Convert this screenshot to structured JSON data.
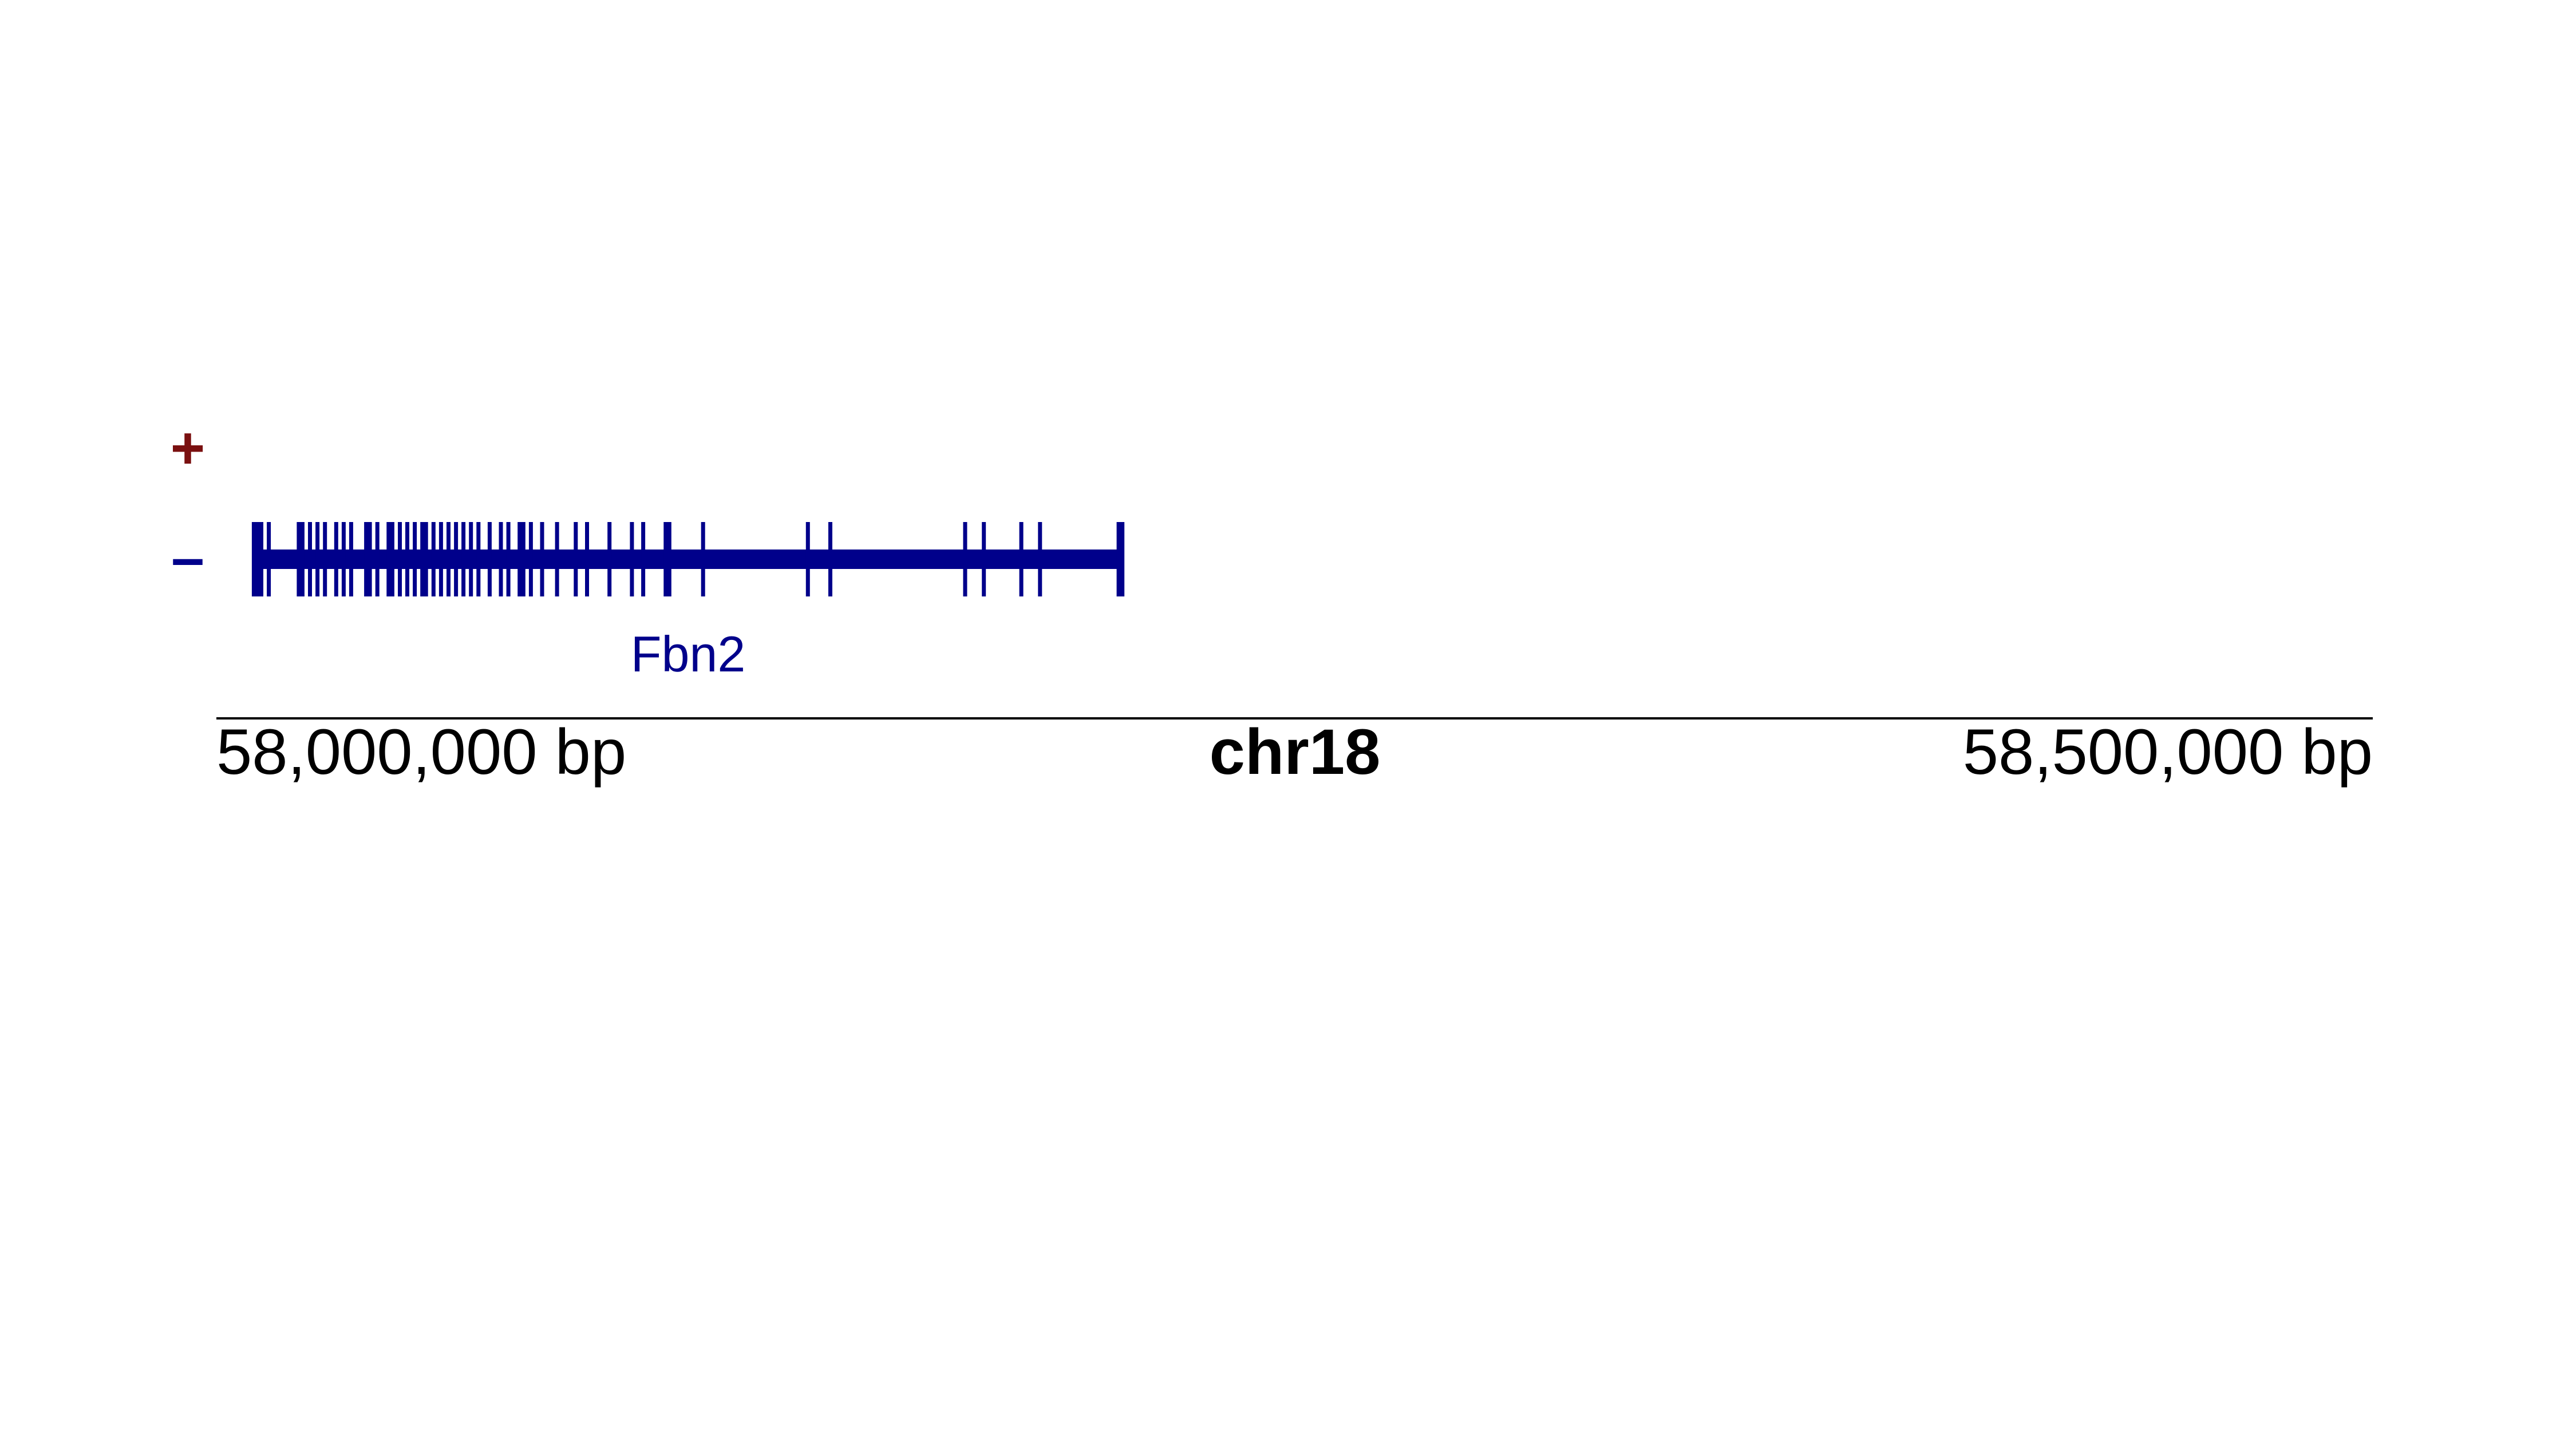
{
  "strand_labels": {
    "plus": "+",
    "minus": "–"
  },
  "colors": {
    "plus": "#7a1010",
    "minus": "#00008b",
    "gene": "#00008b",
    "axis": "#000000"
  },
  "region": {
    "chrom": "chr18",
    "start": 57924000,
    "end": 58500000
  },
  "axis": {
    "chrom_label": "chr18",
    "left_label": "58,000,000 bp",
    "right_label": "58,500,000 bp"
  },
  "gene": {
    "name": "Fbn2",
    "strand": "-",
    "start": 57934000,
    "end": 58166000,
    "exons": [
      57935000,
      57936000,
      57938000,
      57946000,
      57947000,
      57949000,
      57951000,
      57953000,
      57956000,
      57958000,
      57960000,
      57964000,
      57965000,
      57967000,
      57970000,
      57971000,
      57973000,
      57975000,
      57977000,
      57979000,
      57980000,
      57982000,
      57984000,
      57986000,
      57988000,
      57990000,
      57992000,
      57994000,
      57997000,
      58000000,
      58002000,
      58005000,
      58006000,
      58008000,
      58011000,
      58015000,
      58020000,
      58023000,
      58029000,
      58035000,
      58038000,
      58044000,
      58045000,
      58054000,
      58082000,
      58088000,
      58124000,
      58129000,
      58139000,
      58144000,
      58165000
    ]
  }
}
